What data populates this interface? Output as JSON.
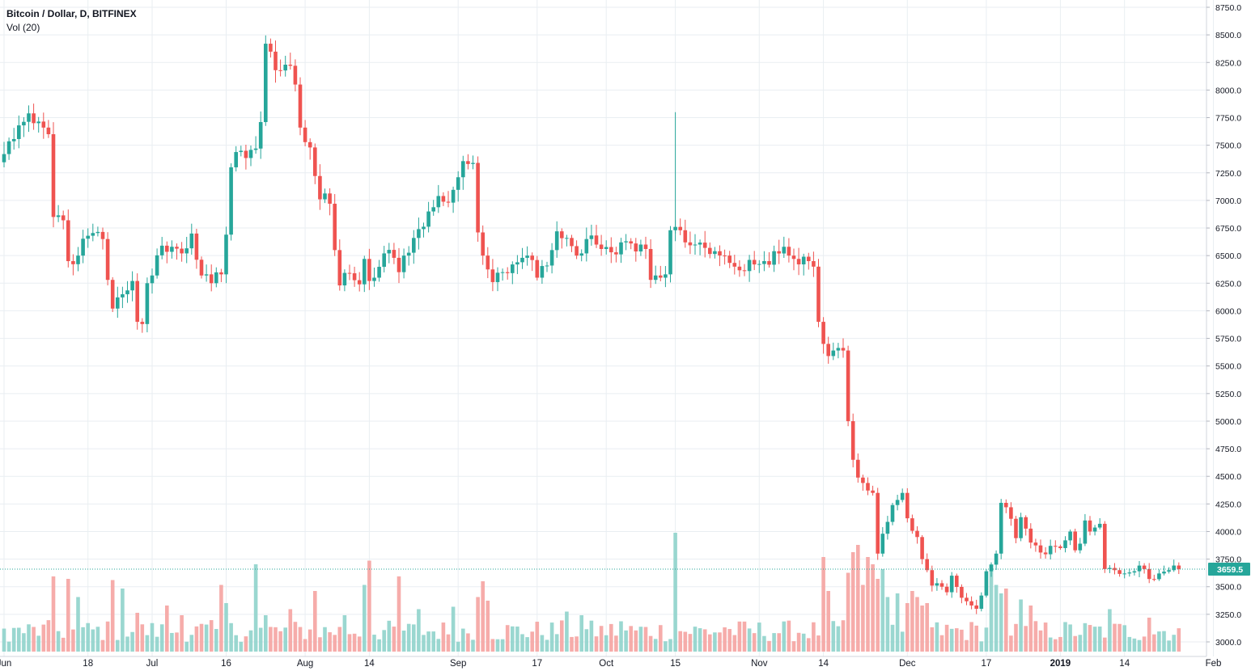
{
  "chart_data": {
    "type": "candlestick",
    "title": "Bitcoin / Dollar, D, BITFINEX",
    "indicator": "Vol (20)",
    "y_range": [
      2900,
      8780
    ],
    "y_ticks": [
      3000,
      3250,
      3500,
      3750,
      4000,
      4250,
      4500,
      4750,
      5000,
      5250,
      5500,
      5750,
      6000,
      6250,
      6500,
      6750,
      7000,
      7250,
      7500,
      7750,
      8000,
      8250,
      8500,
      8750
    ],
    "last_price": 3659.5,
    "last_price_label": "3659.5",
    "up_color": "#26a69a",
    "down_color": "#ef5350",
    "volume_max": 100,
    "x_ticks": [
      {
        "day": 0,
        "label": "Jun"
      },
      {
        "day": 17,
        "label": "18"
      },
      {
        "day": 30,
        "label": "Jul"
      },
      {
        "day": 45,
        "label": "16"
      },
      {
        "day": 61,
        "label": "Aug"
      },
      {
        "day": 74,
        "label": "14"
      },
      {
        "day": 92,
        "label": "Sep"
      },
      {
        "day": 108,
        "label": "17"
      },
      {
        "day": 122,
        "label": "Oct"
      },
      {
        "day": 136,
        "label": "15"
      },
      {
        "day": 153,
        "label": "Nov"
      },
      {
        "day": 166,
        "label": "14"
      },
      {
        "day": 183,
        "label": "Dec"
      },
      {
        "day": 199,
        "label": "17"
      },
      {
        "day": 214,
        "label": "2019",
        "bold": true
      },
      {
        "day": 227,
        "label": "14"
      },
      {
        "day": 245,
        "label": "Feb"
      }
    ],
    "day_range": [
      0,
      238
    ],
    "anchors": [
      [
        0,
        7420
      ],
      [
        3,
        7680
      ],
      [
        6,
        7700
      ],
      [
        8,
        7660
      ],
      [
        9,
        7600
      ],
      [
        10,
        6850
      ],
      [
        12,
        6820
      ],
      [
        13,
        6450
      ],
      [
        15,
        6500
      ],
      [
        17,
        6680
      ],
      [
        20,
        6650
      ],
      [
        21,
        6280
      ],
      [
        22,
        6020
      ],
      [
        24,
        6150
      ],
      [
        26,
        6270
      ],
      [
        27,
        5900
      ],
      [
        28,
        5880
      ],
      [
        29,
        6250
      ],
      [
        30,
        6320
      ],
      [
        32,
        6590
      ],
      [
        34,
        6580
      ],
      [
        36,
        6520
      ],
      [
        38,
        6700
      ],
      [
        40,
        6320
      ],
      [
        42,
        6250
      ],
      [
        44,
        6330
      ],
      [
        45,
        6690
      ],
      [
        46,
        7300
      ],
      [
        48,
        7450
      ],
      [
        51,
        7470
      ],
      [
        52,
        7710
      ],
      [
        53,
        8420
      ],
      [
        55,
        8180
      ],
      [
        57,
        8230
      ],
      [
        58,
        8220
      ],
      [
        59,
        8050
      ],
      [
        60,
        7660
      ],
      [
        62,
        7480
      ],
      [
        64,
        7010
      ],
      [
        66,
        6970
      ],
      [
        67,
        6550
      ],
      [
        68,
        6230
      ],
      [
        70,
        6340
      ],
      [
        72,
        6240
      ],
      [
        73,
        6470
      ],
      [
        74,
        6270
      ],
      [
        75,
        6300
      ],
      [
        77,
        6520
      ],
      [
        79,
        6480
      ],
      [
        80,
        6350
      ],
      [
        81,
        6500
      ],
      [
        83,
        6660
      ],
      [
        84,
        6740
      ],
      [
        86,
        6900
      ],
      [
        88,
        7040
      ],
      [
        90,
        6980
      ],
      [
        92,
        7210
      ],
      [
        94,
        7330
      ],
      [
        95,
        7340
      ],
      [
        96,
        6710
      ],
      [
        97,
        6500
      ],
      [
        99,
        6260
      ],
      [
        101,
        6350
      ],
      [
        103,
        6420
      ],
      [
        105,
        6480
      ],
      [
        106,
        6500
      ],
      [
        108,
        6300
      ],
      [
        110,
        6410
      ],
      [
        111,
        6550
      ],
      [
        112,
        6720
      ],
      [
        114,
        6660
      ],
      [
        116,
        6500
      ],
      [
        117,
        6520
      ],
      [
        118,
        6650
      ],
      [
        120,
        6600
      ],
      [
        121,
        6560
      ],
      [
        123,
        6530
      ],
      [
        125,
        6620
      ],
      [
        127,
        6610
      ],
      [
        129,
        6600
      ],
      [
        130,
        6560
      ],
      [
        131,
        6280
      ],
      [
        133,
        6300
      ],
      [
        134,
        6330
      ],
      [
        135,
        6730
      ],
      [
        136,
        6760
      ],
      [
        137,
        6730
      ],
      [
        138,
        6620
      ],
      [
        140,
        6600
      ],
      [
        142,
        6570
      ],
      [
        144,
        6540
      ],
      [
        146,
        6500
      ],
      [
        148,
        6400
      ],
      [
        150,
        6360
      ],
      [
        152,
        6420
      ],
      [
        154,
        6450
      ],
      [
        156,
        6540
      ],
      [
        158,
        6580
      ],
      [
        159,
        6500
      ],
      [
        160,
        6470
      ],
      [
        162,
        6490
      ],
      [
        163,
        6450
      ],
      [
        164,
        6400
      ],
      [
        165,
        5900
      ],
      [
        166,
        5700
      ],
      [
        167,
        5590
      ],
      [
        168,
        5640
      ],
      [
        170,
        5640
      ],
      [
        171,
        5000
      ],
      [
        172,
        4650
      ],
      [
        174,
        4440
      ],
      [
        176,
        4350
      ],
      [
        177,
        3800
      ],
      [
        178,
        3980
      ],
      [
        180,
        4240
      ],
      [
        182,
        4350
      ],
      [
        183,
        4120
      ],
      [
        185,
        3950
      ],
      [
        186,
        3750
      ],
      [
        187,
        3650
      ],
      [
        188,
        3510
      ],
      [
        190,
        3500
      ],
      [
        191,
        3450
      ],
      [
        192,
        3600
      ],
      [
        194,
        3400
      ],
      [
        196,
        3330
      ],
      [
        197,
        3300
      ],
      [
        198,
        3420
      ],
      [
        199,
        3640
      ],
      [
        200,
        3700
      ],
      [
        201,
        3800
      ],
      [
        202,
        4260
      ],
      [
        203,
        4220
      ],
      [
        205,
        3940
      ],
      [
        206,
        4130
      ],
      [
        208,
        3900
      ],
      [
        210,
        3810
      ],
      [
        212,
        3870
      ],
      [
        214,
        3850
      ],
      [
        216,
        4000
      ],
      [
        217,
        3830
      ],
      [
        218,
        3890
      ],
      [
        219,
        4100
      ],
      [
        220,
        4000
      ],
      [
        222,
        4070
      ],
      [
        223,
        3660
      ],
      [
        225,
        3650
      ],
      [
        227,
        3620
      ],
      [
        229,
        3640
      ],
      [
        231,
        3660
      ],
      [
        232,
        3570
      ],
      [
        234,
        3620
      ],
      [
        236,
        3650
      ],
      [
        238,
        3659.5
      ]
    ],
    "volume_spikes": [
      [
        10,
        62
      ],
      [
        13,
        60
      ],
      [
        15,
        45
      ],
      [
        22,
        59
      ],
      [
        24,
        52
      ],
      [
        27,
        32
      ],
      [
        33,
        38
      ],
      [
        36,
        30
      ],
      [
        44,
        55
      ],
      [
        45,
        40
      ],
      [
        51,
        72
      ],
      [
        53,
        30
      ],
      [
        58,
        35
      ],
      [
        63,
        50
      ],
      [
        69,
        30
      ],
      [
        73,
        55
      ],
      [
        74,
        75
      ],
      [
        80,
        62
      ],
      [
        84,
        35
      ],
      [
        91,
        37
      ],
      [
        96,
        45
      ],
      [
        97,
        58
      ],
      [
        98,
        42
      ],
      [
        114,
        33
      ],
      [
        117,
        30
      ],
      [
        125,
        25
      ],
      [
        136,
        98
      ],
      [
        146,
        20
      ],
      [
        166,
        78
      ],
      [
        167,
        50
      ],
      [
        171,
        65
      ],
      [
        172,
        82
      ],
      [
        173,
        88
      ],
      [
        174,
        55
      ],
      [
        175,
        78
      ],
      [
        176,
        72
      ],
      [
        177,
        60
      ],
      [
        178,
        68
      ],
      [
        179,
        45
      ],
      [
        181,
        48
      ],
      [
        183,
        40
      ],
      [
        184,
        50
      ],
      [
        185,
        45
      ],
      [
        186,
        38
      ],
      [
        187,
        40
      ],
      [
        200,
        72
      ],
      [
        201,
        55
      ],
      [
        202,
        48
      ],
      [
        203,
        52
      ],
      [
        206,
        43
      ],
      [
        208,
        38
      ],
      [
        224,
        35
      ],
      [
        232,
        28
      ]
    ]
  }
}
